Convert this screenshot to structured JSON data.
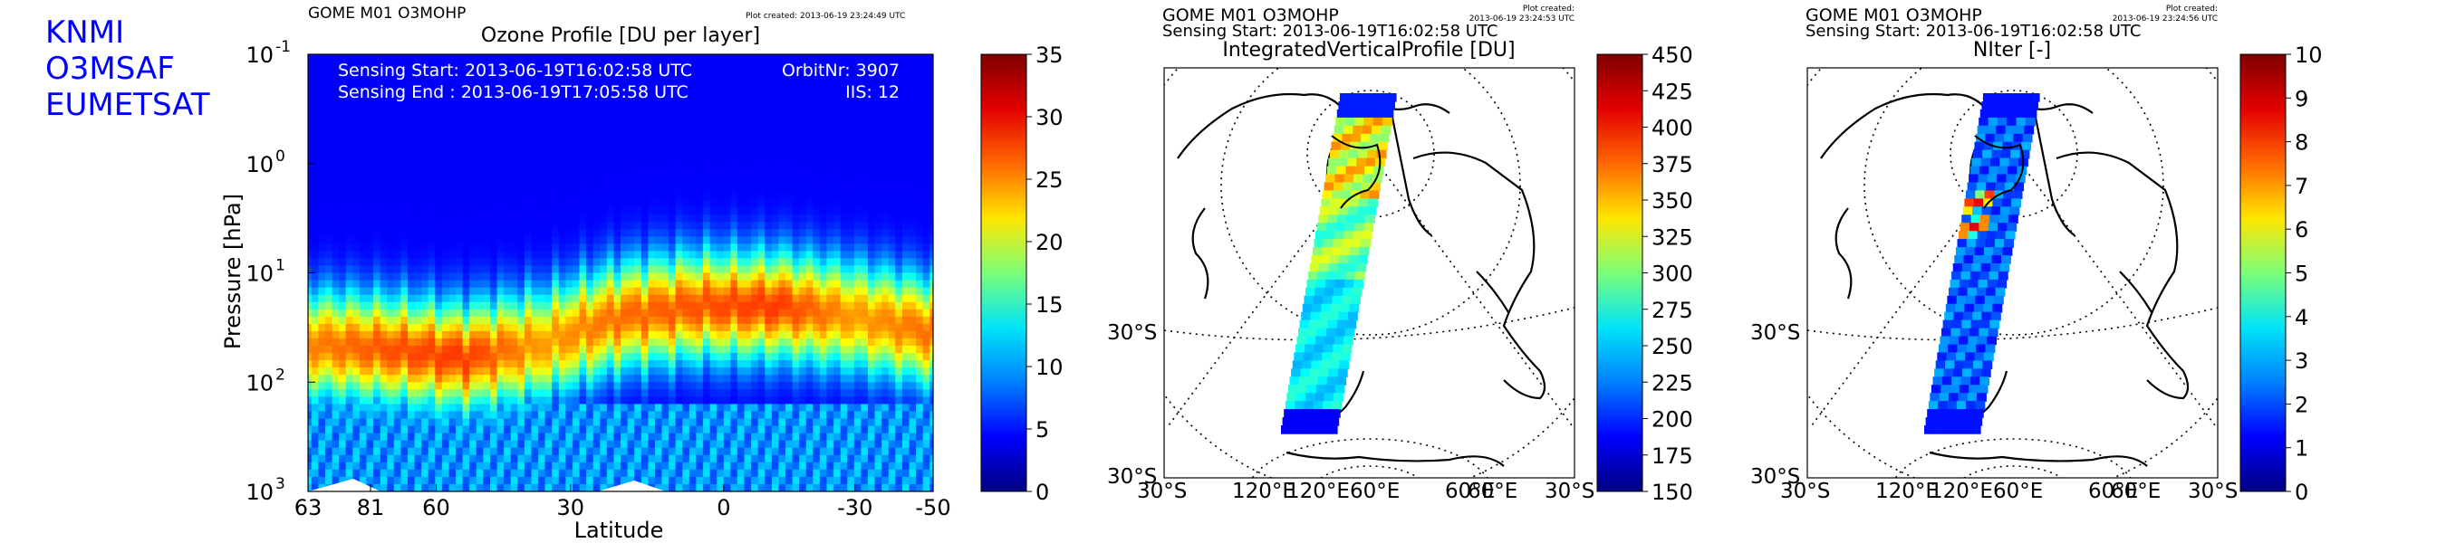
{
  "org": [
    "KNMI",
    "O3MSAF",
    "EUMETSAT"
  ],
  "cbar_gradient": [
    "#00007f",
    "#0000ff",
    "#0080ff",
    "#00e4f8",
    "#7cff79",
    "#ffe600",
    "#ff6800",
    "#e40000",
    "#7f0000"
  ],
  "chart_data": [
    {
      "type": "heatmap",
      "header": "GOME M01 O3MOHP",
      "plot_created": "Plot created: 2013-06-19 23:24:49 UTC",
      "title": "Ozone Profile [DU per layer]",
      "xlabel": "Latitude",
      "ylabel": "Pressure [hPa]",
      "y_scale": "log",
      "ylim": [
        1000,
        0.1
      ],
      "y_ticks": [
        {
          "base": "10",
          "exp": "-1"
        },
        {
          "base": "10",
          "exp": "0"
        },
        {
          "base": "10",
          "exp": "1"
        },
        {
          "base": "10",
          "exp": "2"
        },
        {
          "base": "10",
          "exp": "3"
        }
      ],
      "x_ticks": [
        "63",
        "81",
        "60",
        "30",
        "0",
        "-30",
        "-50"
      ],
      "annotations": {
        "sensing_start": "Sensing Start: 2013-06-19T16:02:58 UTC",
        "sensing_end": "Sensing End  : 2013-06-19T17:05:58 UTC",
        "orbit": "OrbitNr: 3907",
        "iis": "IIS: 12"
      },
      "colorbar": {
        "min": 0,
        "max": 35,
        "ticks": [
          "0",
          "5",
          "10",
          "15",
          "20",
          "25",
          "30",
          "35"
        ]
      },
      "latitude_profile": [
        {
          "lat": 63,
          "peak_hpa": 45,
          "peak_du": 25
        },
        {
          "lat": 81,
          "peak_hpa": 50,
          "peak_du": 27
        },
        {
          "lat": 70,
          "peak_hpa": 60,
          "peak_du": 28
        },
        {
          "lat": 60,
          "peak_hpa": 45,
          "peak_du": 24
        },
        {
          "lat": 45,
          "peak_hpa": 25,
          "peak_du": 26
        },
        {
          "lat": 30,
          "peak_hpa": 20,
          "peak_du": 27
        },
        {
          "lat": 0,
          "peak_hpa": 20,
          "peak_du": 28
        },
        {
          "lat": -30,
          "peak_hpa": 25,
          "peak_du": 24
        },
        {
          "lat": -50,
          "peak_hpa": 35,
          "peak_du": 26
        }
      ]
    },
    {
      "type": "map",
      "header": "GOME M01 O3MOHP",
      "sensing_start": "Sensing Start: 2013-06-19T16:02:58 UTC",
      "plot_created": "Plot created:",
      "plot_created_time": "2013-06-19 23:24:53 UTC",
      "title": "IntegratedVerticalProfile [DU]",
      "colorbar": {
        "min": 150,
        "max": 450,
        "ticks": [
          "150",
          "175",
          "200",
          "225",
          "250",
          "275",
          "300",
          "325",
          "350",
          "375",
          "400",
          "425",
          "450"
        ]
      },
      "lat_labels": [
        "30°S",
        "30°S"
      ],
      "lon_labels": [
        "30°S",
        "120°E",
        "120°E",
        "60°E",
        "60°E",
        "60°E",
        "30°S"
      ]
    },
    {
      "type": "map",
      "header": "GOME M01 O3MOHP",
      "sensing_start": "Sensing Start: 2013-06-19T16:02:58 UTC",
      "plot_created": "Plot created:",
      "plot_created_time": "2013-06-19 23:24:56 UTC",
      "title": "NIter [-]",
      "colorbar": {
        "min": 0,
        "max": 10,
        "ticks": [
          "0",
          "1",
          "2",
          "3",
          "4",
          "5",
          "6",
          "7",
          "8",
          "9",
          "10"
        ]
      },
      "lat_labels": [
        "30°S",
        "30°S"
      ],
      "lon_labels": [
        "30°S",
        "120°E",
        "120°E",
        "60°E",
        "60°E",
        "60°E",
        "30°S"
      ]
    }
  ]
}
